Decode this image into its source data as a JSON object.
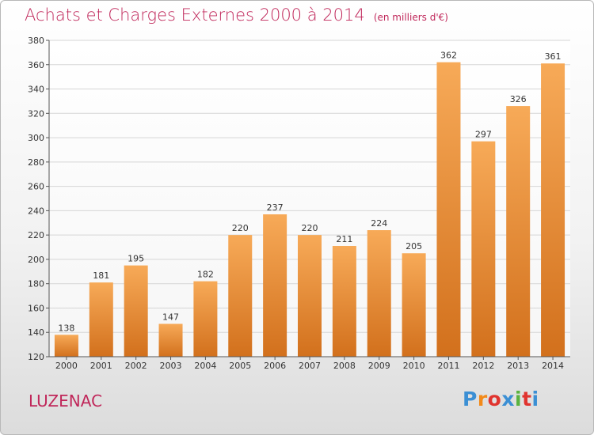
{
  "header": {
    "title": "Achats et Charges Externes 2000 à 2014",
    "subtitle": "(en milliers d'€)"
  },
  "commune": "LUZENAC",
  "logo": {
    "text": "Proxiti",
    "colors": [
      "#3b8fd4",
      "#f28a1a",
      "#e0342f",
      "#3b8fd4",
      "#5ab340",
      "#e0342f",
      "#3b8fd4"
    ]
  },
  "colors": {
    "bar_top": "#f7aa58",
    "bar_bottom": "#d2701c",
    "title": "#c0275a",
    "grid": "#d6d6d6"
  },
  "chart_data": {
    "type": "bar",
    "categories": [
      "2000",
      "2001",
      "2002",
      "2003",
      "2004",
      "2005",
      "2006",
      "2007",
      "2008",
      "2009",
      "2010",
      "2011",
      "2012",
      "2013",
      "2014"
    ],
    "values": [
      138,
      181,
      195,
      147,
      182,
      220,
      237,
      220,
      211,
      224,
      205,
      362,
      297,
      326,
      361
    ],
    "ylim": [
      120,
      380
    ],
    "yticks": [
      120,
      140,
      160,
      180,
      200,
      220,
      240,
      260,
      280,
      300,
      320,
      340,
      360,
      380
    ],
    "grid": true,
    "data_labels": true
  }
}
